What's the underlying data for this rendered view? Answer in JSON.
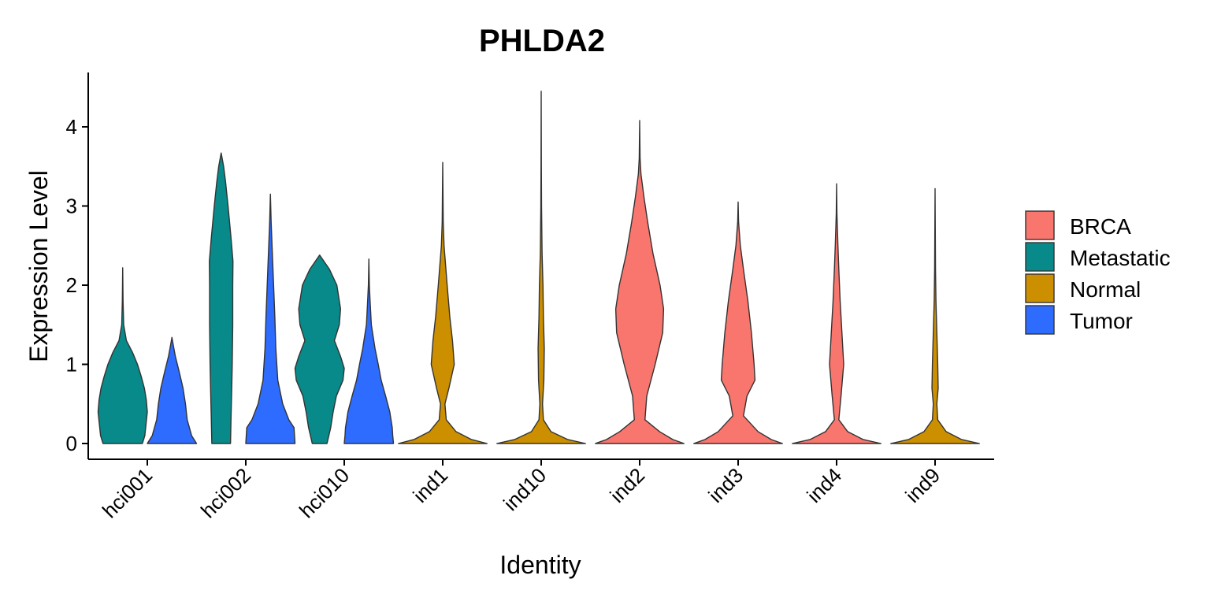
{
  "chart_data": {
    "type": "violin",
    "title": "PHLDA2",
    "xlabel": "Identity",
    "ylabel": "Expression Level",
    "ylim": [
      -0.2,
      4.7
    ],
    "yticks": [
      0,
      1,
      2,
      3,
      4
    ],
    "categories": [
      "hci001",
      "hci002",
      "hci010",
      "ind1",
      "ind10",
      "ind2",
      "ind3",
      "ind4",
      "ind9"
    ],
    "legend": {
      "position": "right",
      "entries": [
        {
          "name": "BRCA",
          "color": "#F8766D"
        },
        {
          "name": "Metastatic",
          "color": "#088A8A"
        },
        {
          "name": "Normal",
          "color": "#CC8F00"
        },
        {
          "name": "Tumor",
          "color": "#2E6BFF"
        }
      ]
    },
    "violins": [
      {
        "category": "hci001",
        "group": "Metastatic",
        "offset": -0.25,
        "width": 0.5,
        "max": 2.22,
        "profile": [
          [
            0,
            0.8
          ],
          [
            0.1,
            0.9
          ],
          [
            0.25,
            0.95
          ],
          [
            0.4,
            1.0
          ],
          [
            0.55,
            0.96
          ],
          [
            0.7,
            0.88
          ],
          [
            0.85,
            0.75
          ],
          [
            1.0,
            0.6
          ],
          [
            1.15,
            0.4
          ],
          [
            1.3,
            0.15
          ],
          [
            1.5,
            0.04
          ],
          [
            1.8,
            0.015
          ],
          [
            2.22,
            0
          ]
        ]
      },
      {
        "category": "hci001",
        "group": "Tumor",
        "offset": 0.25,
        "width": 0.5,
        "max": 1.34,
        "profile": [
          [
            0,
            1.0
          ],
          [
            0.1,
            0.8
          ],
          [
            0.3,
            0.62
          ],
          [
            0.5,
            0.55
          ],
          [
            0.7,
            0.45
          ],
          [
            0.9,
            0.3
          ],
          [
            1.1,
            0.14
          ],
          [
            1.2,
            0.08
          ],
          [
            1.34,
            0
          ]
        ]
      },
      {
        "category": "hci002",
        "group": "Metastatic",
        "offset": -0.25,
        "width": 0.5,
        "max": 3.67,
        "profile": [
          [
            0,
            0.38
          ],
          [
            0.3,
            0.4
          ],
          [
            0.7,
            0.43
          ],
          [
            1.0,
            0.45
          ],
          [
            1.5,
            0.47
          ],
          [
            2.0,
            0.47
          ],
          [
            2.3,
            0.48
          ],
          [
            2.6,
            0.4
          ],
          [
            3.0,
            0.28
          ],
          [
            3.3,
            0.18
          ],
          [
            3.5,
            0.1
          ],
          [
            3.67,
            0
          ]
        ]
      },
      {
        "category": "hci002",
        "group": "Tumor",
        "offset": 0.25,
        "width": 0.5,
        "max": 3.15,
        "profile": [
          [
            0,
            1.0
          ],
          [
            0.1,
            0.98
          ],
          [
            0.2,
            0.96
          ],
          [
            0.3,
            0.75
          ],
          [
            0.5,
            0.5
          ],
          [
            0.8,
            0.3
          ],
          [
            1.2,
            0.22
          ],
          [
            1.6,
            0.18
          ],
          [
            2.0,
            0.13
          ],
          [
            2.4,
            0.08
          ],
          [
            2.8,
            0.03
          ],
          [
            3.15,
            0
          ]
        ]
      },
      {
        "category": "hci010",
        "group": "Metastatic",
        "offset": -0.25,
        "width": 0.5,
        "max": 2.38,
        "profile": [
          [
            0,
            0.3
          ],
          [
            0.2,
            0.45
          ],
          [
            0.4,
            0.55
          ],
          [
            0.6,
            0.68
          ],
          [
            0.8,
            0.95
          ],
          [
            0.95,
            1.0
          ],
          [
            1.1,
            0.85
          ],
          [
            1.3,
            0.6
          ],
          [
            1.5,
            0.8
          ],
          [
            1.7,
            0.85
          ],
          [
            2.0,
            0.7
          ],
          [
            2.2,
            0.4
          ],
          [
            2.38,
            0
          ]
        ]
      },
      {
        "category": "hci010",
        "group": "Tumor",
        "offset": 0.25,
        "width": 0.5,
        "max": 2.33,
        "profile": [
          [
            0,
            1.0
          ],
          [
            0.1,
            0.97
          ],
          [
            0.2,
            0.95
          ],
          [
            0.4,
            0.85
          ],
          [
            0.6,
            0.68
          ],
          [
            0.8,
            0.5
          ],
          [
            1.0,
            0.38
          ],
          [
            1.2,
            0.25
          ],
          [
            1.5,
            0.1
          ],
          [
            1.8,
            0.05
          ],
          [
            2.0,
            0.02
          ],
          [
            2.33,
            0
          ]
        ]
      },
      {
        "category": "ind1",
        "group": "Normal",
        "offset": 0,
        "width": 0.9,
        "max": 3.55,
        "profile": [
          [
            0,
            1.0
          ],
          [
            0.05,
            0.65
          ],
          [
            0.15,
            0.3
          ],
          [
            0.3,
            0.08
          ],
          [
            0.5,
            0.05
          ],
          [
            0.7,
            0.14
          ],
          [
            1.0,
            0.26
          ],
          [
            1.3,
            0.22
          ],
          [
            1.6,
            0.16
          ],
          [
            2.0,
            0.1
          ],
          [
            2.5,
            0.03
          ],
          [
            2.8,
            0.012
          ],
          [
            3.55,
            0
          ]
        ]
      },
      {
        "category": "ind10",
        "group": "Normal",
        "offset": 0,
        "width": 0.9,
        "max": 4.45,
        "profile": [
          [
            0,
            1.0
          ],
          [
            0.05,
            0.6
          ],
          [
            0.15,
            0.22
          ],
          [
            0.3,
            0.05
          ],
          [
            0.5,
            0.03
          ],
          [
            0.8,
            0.06
          ],
          [
            1.2,
            0.07
          ],
          [
            1.6,
            0.05
          ],
          [
            2.0,
            0.04
          ],
          [
            2.4,
            0.02
          ],
          [
            3.0,
            0.008
          ],
          [
            3.5,
            0.004
          ],
          [
            4.45,
            0
          ]
        ]
      },
      {
        "category": "ind2",
        "group": "BRCA",
        "offset": 0,
        "width": 0.9,
        "max": 4.08,
        "profile": [
          [
            0,
            1.0
          ],
          [
            0.05,
            0.75
          ],
          [
            0.15,
            0.45
          ],
          [
            0.3,
            0.12
          ],
          [
            0.6,
            0.16
          ],
          [
            1.0,
            0.35
          ],
          [
            1.4,
            0.52
          ],
          [
            1.7,
            0.54
          ],
          [
            2.0,
            0.46
          ],
          [
            2.4,
            0.3
          ],
          [
            2.8,
            0.18
          ],
          [
            3.1,
            0.1
          ],
          [
            3.4,
            0.03
          ],
          [
            3.6,
            0.01
          ],
          [
            4.08,
            0
          ]
        ]
      },
      {
        "category": "ind3",
        "group": "BRCA",
        "offset": 0,
        "width": 0.9,
        "max": 3.05,
        "profile": [
          [
            0,
            1.0
          ],
          [
            0.05,
            0.75
          ],
          [
            0.15,
            0.45
          ],
          [
            0.35,
            0.12
          ],
          [
            0.6,
            0.2
          ],
          [
            0.8,
            0.38
          ],
          [
            1.0,
            0.36
          ],
          [
            1.4,
            0.3
          ],
          [
            1.8,
            0.22
          ],
          [
            2.2,
            0.12
          ],
          [
            2.5,
            0.05
          ],
          [
            2.8,
            0.01
          ],
          [
            3.05,
            0
          ]
        ]
      },
      {
        "category": "ind4",
        "group": "BRCA",
        "offset": 0,
        "width": 0.9,
        "max": 3.28,
        "profile": [
          [
            0,
            1.0
          ],
          [
            0.05,
            0.6
          ],
          [
            0.15,
            0.25
          ],
          [
            0.3,
            0.05
          ],
          [
            0.6,
            0.1
          ],
          [
            1.0,
            0.16
          ],
          [
            1.4,
            0.12
          ],
          [
            1.8,
            0.08
          ],
          [
            2.2,
            0.05
          ],
          [
            2.5,
            0.03
          ],
          [
            2.9,
            0.008
          ],
          [
            3.28,
            0
          ]
        ]
      },
      {
        "category": "ind9",
        "group": "Normal",
        "offset": 0,
        "width": 0.9,
        "max": 3.22,
        "profile": [
          [
            0,
            1.0
          ],
          [
            0.05,
            0.6
          ],
          [
            0.15,
            0.25
          ],
          [
            0.3,
            0.06
          ],
          [
            0.5,
            0.04
          ],
          [
            0.7,
            0.07
          ],
          [
            1.0,
            0.06
          ],
          [
            1.4,
            0.04
          ],
          [
            1.8,
            0.02
          ],
          [
            2.2,
            0.01
          ],
          [
            3.22,
            0
          ]
        ]
      }
    ]
  }
}
